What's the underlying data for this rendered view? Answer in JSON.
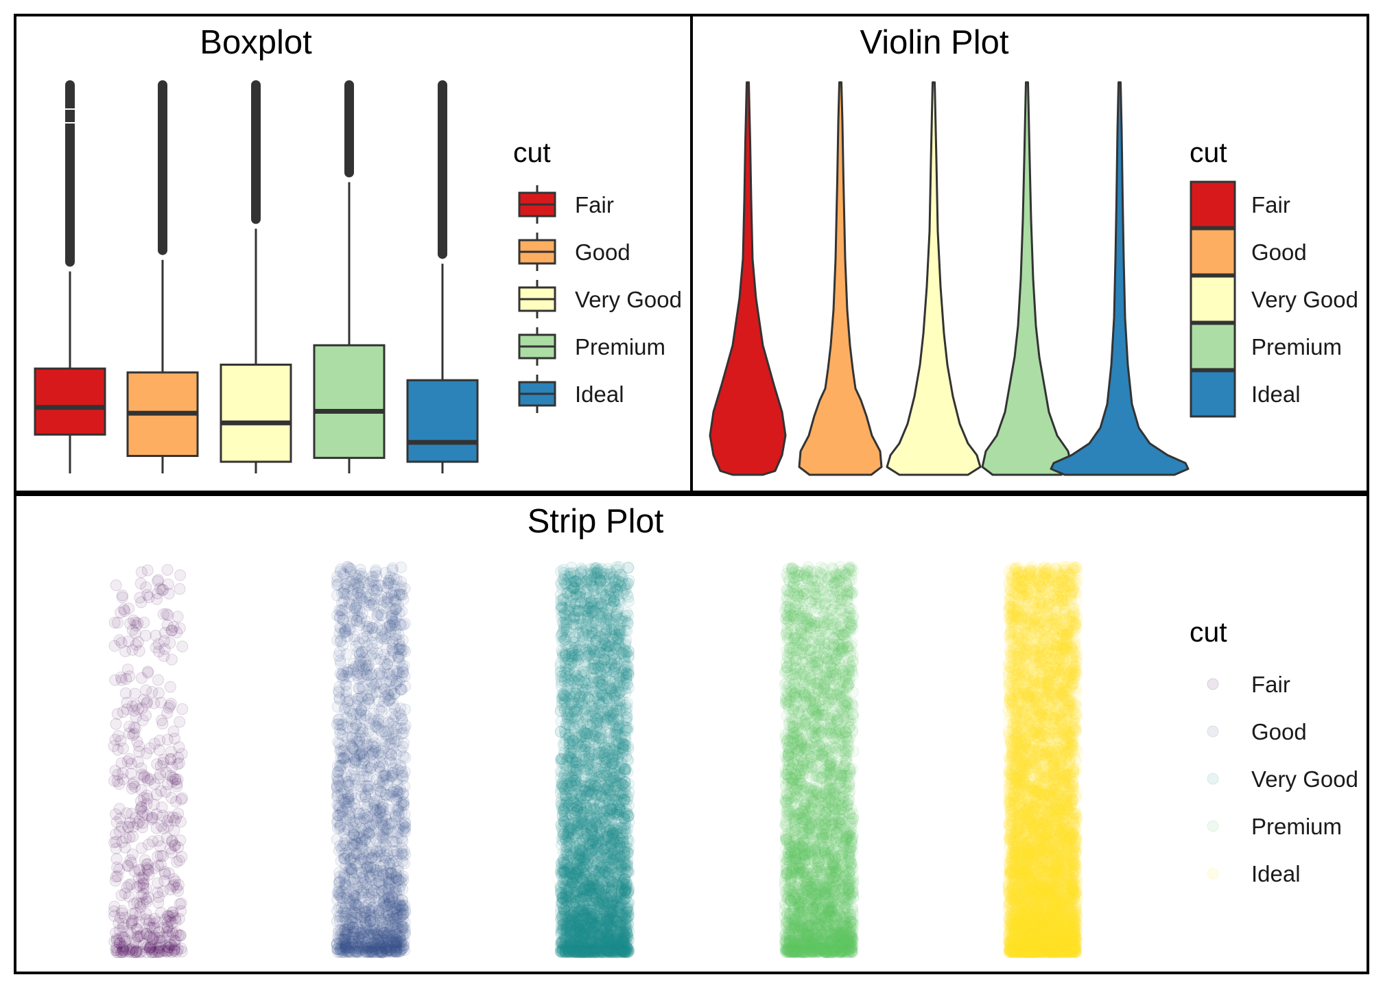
{
  "colors": {
    "outline": "#333333",
    "border": "#000000",
    "spectral": [
      "#d7191c",
      "#fdae61",
      "#ffffbf",
      "#abdda4",
      "#2b83ba"
    ],
    "viridis": [
      "#440154",
      "#3b528b",
      "#21908c",
      "#5dc863",
      "#fde725"
    ]
  },
  "chart_data": [
    {
      "id": "boxplot",
      "type": "box",
      "title": "Boxplot",
      "legend": {
        "title": "cut",
        "position": "right",
        "key": "box"
      },
      "categories": [
        "Fair",
        "Good",
        "Very Good",
        "Premium",
        "Ideal"
      ],
      "grid": false,
      "axes_shown": false,
      "ylim_rel": [
        0,
        1
      ],
      "boxes": [
        {
          "name": "Fair",
          "whisker_low": 0.0,
          "q1": 0.1,
          "median": 0.17,
          "q3": 0.27,
          "whisker_high": 0.52,
          "outliers_to": 1.0
        },
        {
          "name": "Good",
          "whisker_low": 0.0,
          "q1": 0.045,
          "median": 0.155,
          "q3": 0.26,
          "whisker_high": 0.55,
          "outliers_to": 1.0
        },
        {
          "name": "Very Good",
          "whisker_low": 0.0,
          "q1": 0.03,
          "median": 0.13,
          "q3": 0.28,
          "whisker_high": 0.63,
          "outliers_to": 1.0
        },
        {
          "name": "Premium",
          "whisker_low": 0.0,
          "q1": 0.04,
          "median": 0.16,
          "q3": 0.33,
          "whisker_high": 0.75,
          "outliers_to": 1.0
        },
        {
          "name": "Ideal",
          "whisker_low": 0.0,
          "q1": 0.03,
          "median": 0.08,
          "q3": 0.24,
          "whisker_high": 0.54,
          "outliers_to": 1.0
        }
      ]
    },
    {
      "id": "violin",
      "type": "violin",
      "title": "Violin Plot",
      "legend": {
        "title": "cut",
        "position": "right",
        "key": "fill"
      },
      "categories": [
        "Fair",
        "Good",
        "Very Good",
        "Premium",
        "Ideal"
      ],
      "grid": false,
      "axes_shown": false,
      "ylim_rel": [
        0,
        1
      ]
    },
    {
      "id": "strip",
      "type": "scatter",
      "title": "Strip Plot",
      "legend": {
        "title": "cut",
        "position": "right",
        "key": "point"
      },
      "categories": [
        "Fair",
        "Good",
        "Very Good",
        "Premium",
        "Ideal"
      ],
      "grid": false,
      "axes_shown": false,
      "ylim_rel": [
        0,
        1
      ],
      "point_alpha": 0.1,
      "jitter": true
    }
  ],
  "legend_labels": [
    "Fair",
    "Good",
    "Very Good",
    "Premium",
    "Ideal"
  ]
}
